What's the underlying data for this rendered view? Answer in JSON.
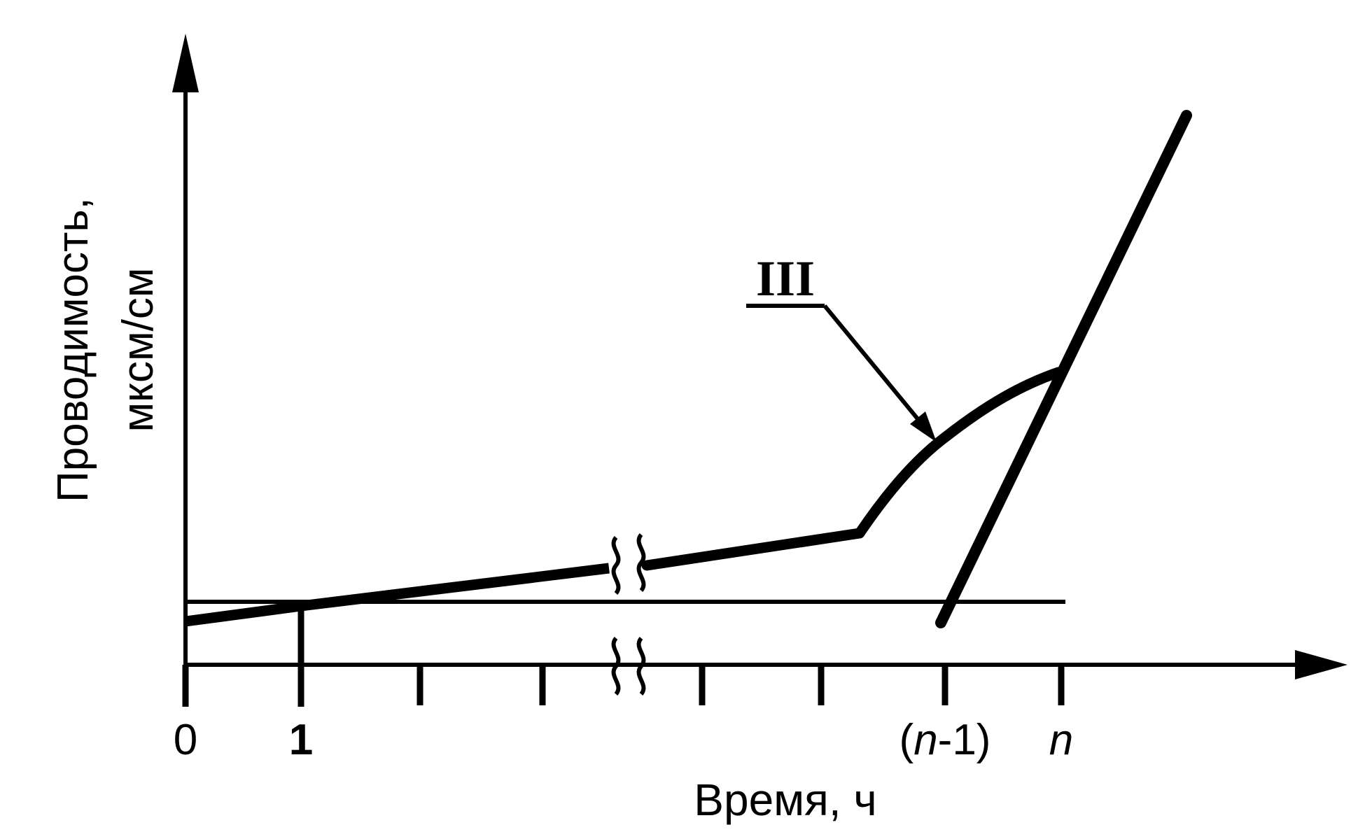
{
  "chart_data": {
    "type": "line",
    "xlabel": "Время, ч",
    "ylabel_line1": "Проводимость,",
    "ylabel_line2": "мксм/см",
    "x_ticks": [
      "0",
      "1",
      "(n-1)",
      "n"
    ],
    "tick_parts": {
      "zero": "0",
      "one": "1",
      "n_minus_1_open": "(",
      "n_minus_1_var": "n",
      "n_minus_1_close": "-1)",
      "n": "n"
    },
    "annotation": "III",
    "axis_break": true
  }
}
